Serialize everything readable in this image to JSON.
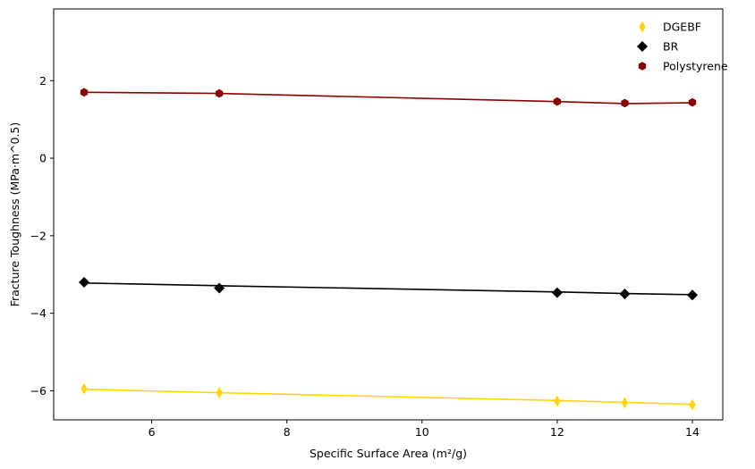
{
  "chart_data": {
    "type": "scatter",
    "title": "",
    "xlabel": "Specific Surface Area (m²/g)",
    "ylabel": "Fracture Toughness (MPa·m^0.5)",
    "xlim": [
      4.55,
      14.45
    ],
    "ylim": [
      -6.75,
      3.85
    ],
    "xticks": [
      6,
      8,
      10,
      12,
      14
    ],
    "yticks": [
      -6,
      -4,
      -2,
      0,
      2
    ],
    "xtick_labels": [
      "6",
      "8",
      "10",
      "12",
      "14"
    ],
    "ytick_labels": [
      "−6",
      "−4",
      "−2",
      "0",
      "2"
    ],
    "grid": false,
    "legend_position": "top-right",
    "series": [
      {
        "name": "DGEBF",
        "color": "#FFD700",
        "marker": "thin-diamond",
        "x": [
          5,
          7,
          12,
          13,
          14
        ],
        "y": [
          -5.95,
          -6.05,
          -6.27,
          -6.31,
          -6.36
        ],
        "fit_line": [
          [
            5,
            -5.96
          ],
          [
            7,
            -6.05
          ],
          [
            12,
            -6.25
          ],
          [
            13,
            -6.3
          ],
          [
            14,
            -6.35
          ]
        ]
      },
      {
        "name": "BR",
        "color": "#000000",
        "marker": "diamond",
        "x": [
          5,
          7,
          12,
          13,
          14
        ],
        "y": [
          -3.2,
          -3.35,
          -3.47,
          -3.5,
          -3.53
        ],
        "fit_line": [
          [
            5,
            -3.22
          ],
          [
            7,
            -3.29
          ],
          [
            12,
            -3.45
          ],
          [
            13,
            -3.49
          ],
          [
            14,
            -3.52
          ]
        ]
      },
      {
        "name": "Polystyrene",
        "color": "#8B0000",
        "marker": "hexagon",
        "x": [
          5,
          7,
          12,
          13,
          14
        ],
        "y": [
          1.7,
          1.67,
          1.46,
          1.42,
          1.44
        ],
        "fit_line": [
          [
            5,
            1.7
          ],
          [
            7,
            1.67
          ],
          [
            12,
            1.46
          ],
          [
            13,
            1.41
          ],
          [
            14,
            1.43
          ]
        ]
      }
    ]
  }
}
